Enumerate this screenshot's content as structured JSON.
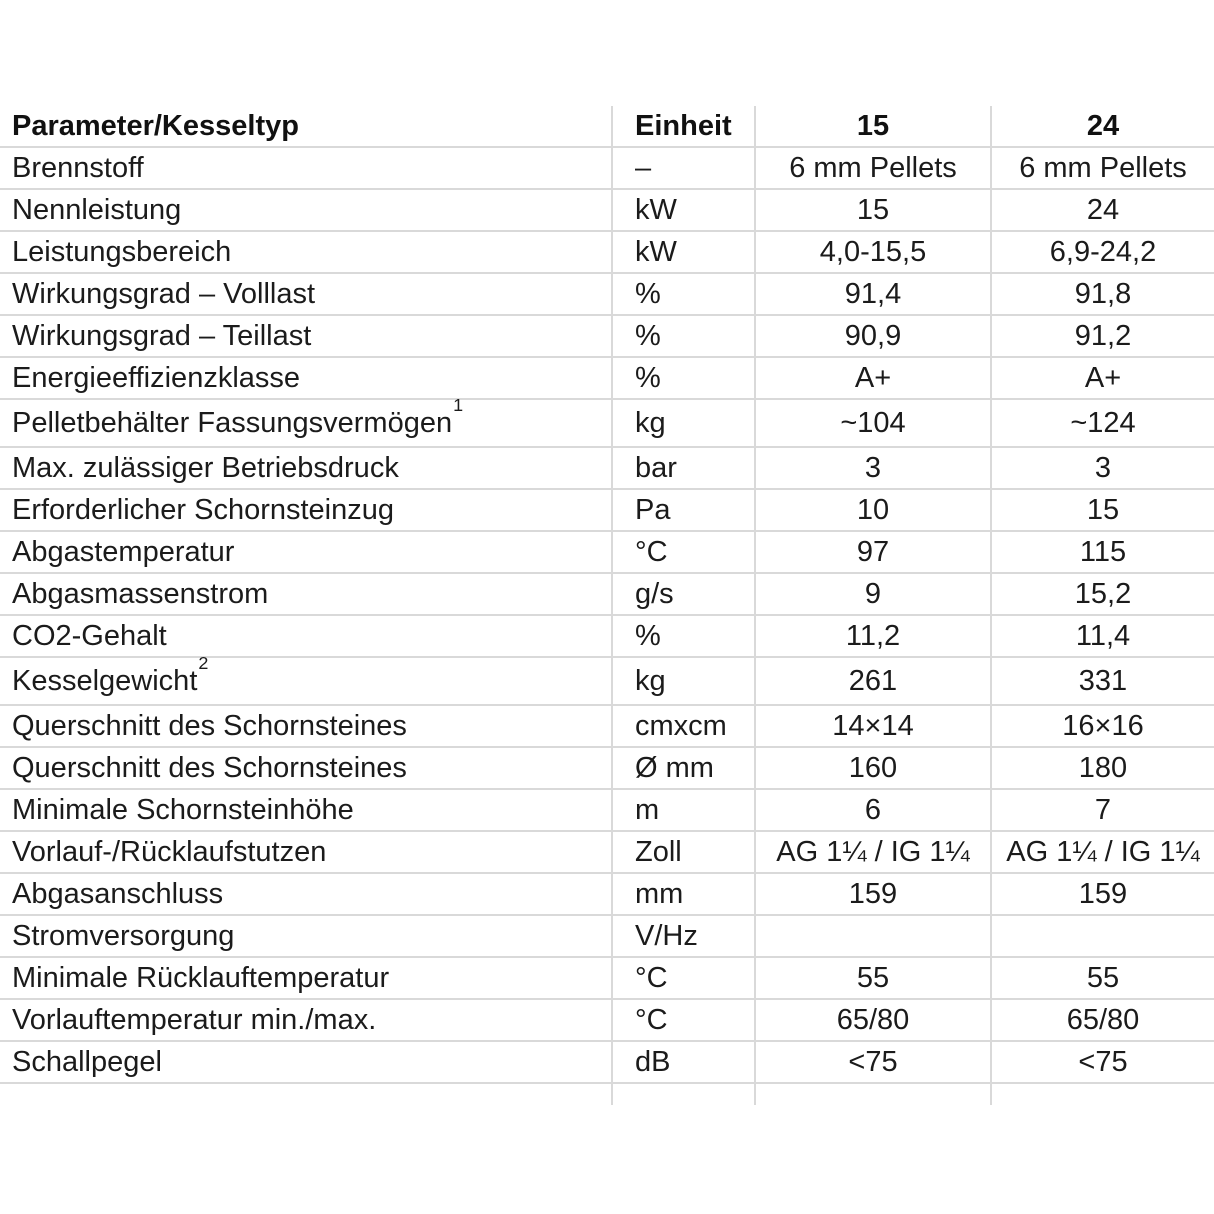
{
  "table": {
    "headers": {
      "param": "Parameter/Kesseltyp",
      "unit": "Einheit",
      "model_15": "15",
      "model_24": "24"
    },
    "rows": [
      {
        "param": "Brennstoff",
        "unit": "–",
        "v15": "6 mm Pellets",
        "v24": "6 mm Pellets"
      },
      {
        "param": "Nennleistung",
        "unit": "kW",
        "v15": "15",
        "v24": "24"
      },
      {
        "param": "Leistungsbereich",
        "unit": "kW",
        "v15": "4,0-15,5",
        "v24": "6,9-24,2"
      },
      {
        "param": "Wirkungsgrad – Volllast",
        "unit": "%",
        "v15": "91,4",
        "v24": "91,8"
      },
      {
        "param": "Wirkungsgrad – Teillast",
        "unit": "%",
        "v15": "90,9",
        "v24": "91,2"
      },
      {
        "param": "Energieeffizienzklasse",
        "unit": "%",
        "v15": "A+",
        "v24": "A+"
      },
      {
        "param": "Pelletbehälter Fassungsvermögen",
        "sup": "1",
        "tall": true,
        "unit": "kg",
        "v15": "~104",
        "v24": "~124"
      },
      {
        "param": "Max. zulässiger Betriebsdruck",
        "unit": "bar",
        "v15": "3",
        "v24": "3"
      },
      {
        "param": "Erforderlicher Schornsteinzug",
        "unit": "Pa",
        "v15": "10",
        "v24": "15"
      },
      {
        "param": "Abgastemperatur",
        "unit": "°C",
        "v15": "97",
        "v24": "115"
      },
      {
        "param": "Abgasmassenstrom",
        "unit": "g/s",
        "v15": "9",
        "v24": "15,2"
      },
      {
        "param": "CO2-Gehalt",
        "unit": "%",
        "v15": "11,2",
        "v24": "11,4"
      },
      {
        "param": "Kesselgewicht",
        "sup": "2",
        "tall": true,
        "unit": "kg",
        "v15": "261",
        "v24": "331"
      },
      {
        "param": "Querschnitt des Schornsteines",
        "unit": "cmxcm",
        "v15": "14×14",
        "v24": "16×16"
      },
      {
        "param": "Querschnitt des Schornsteines",
        "unit": "Ø mm",
        "v15": "160",
        "v24": "180"
      },
      {
        "param": "Minimale Schornsteinhöhe",
        "unit": "m",
        "v15": "6",
        "v24": "7"
      },
      {
        "param": "Vorlauf-/Rücklaufstutzen",
        "unit": "Zoll",
        "v15": "AG 1¼ / IG 1¼",
        "v24": "AG 1¼ / IG 1¼"
      },
      {
        "param": "Abgasanschluss",
        "unit": "mm",
        "v15": "159",
        "v24": "159"
      },
      {
        "param": "Stromversorgung",
        "unit": "V/Hz",
        "v15": "",
        "v24": ""
      },
      {
        "param": "Minimale Rücklauftemperatur",
        "unit": "°C",
        "v15": "55",
        "v24": "55"
      },
      {
        "param": "Vorlauftemperatur min./max.",
        "unit": "°C",
        "v15": "65/80",
        "v24": "65/80"
      },
      {
        "param": "Schallpegel",
        "unit": "dB",
        "v15": "<75",
        "v24": "<75"
      }
    ],
    "colors": {
      "grid": "#d9d9d9",
      "text": "#1b1b1b",
      "background": "#ffffff"
    }
  }
}
